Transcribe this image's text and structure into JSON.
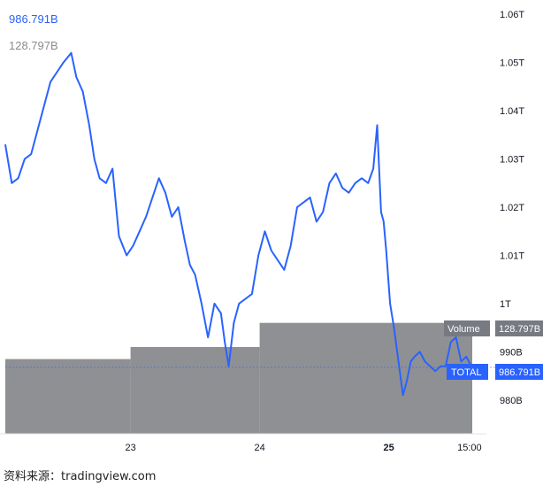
{
  "header": {
    "total_value": "986.791B",
    "volume_value": "128.797B"
  },
  "source_text": "资料来源：tradingview.com",
  "badges": {
    "volume_label": "Volume",
    "volume_value": "128.797B",
    "total_label": "TOTAL",
    "total_value": "986.791B"
  },
  "colors": {
    "line": "#2962ff",
    "volume": "#8f9093",
    "badge_total": "#2962ff",
    "badge_volume": "#777a80"
  },
  "chart_data": {
    "type": "line",
    "title": "",
    "xlabel": "",
    "ylabel": "",
    "x_ticks": [
      {
        "label": "23",
        "x": 23.0,
        "bold": false
      },
      {
        "label": "24",
        "x": 24.0,
        "bold": false
      },
      {
        "label": "25",
        "x": 25.0,
        "bold": true
      },
      {
        "label": "15:00",
        "x": 25.625,
        "bold": false
      }
    ],
    "y_ticks": [
      {
        "label": "1.06T",
        "value": 1060
      },
      {
        "label": "1.05T",
        "value": 1050
      },
      {
        "label": "1.04T",
        "value": 1040
      },
      {
        "label": "1.03T",
        "value": 1030
      },
      {
        "label": "1.02T",
        "value": 1020
      },
      {
        "label": "1.01T",
        "value": 1010
      },
      {
        "label": "1T",
        "value": 1000
      },
      {
        "label": "990B",
        "value": 990
      },
      {
        "label": "980B",
        "value": 980
      }
    ],
    "xlim": [
      22.03,
      25.66
    ],
    "ylim": [
      973.0,
      1061.5
    ],
    "series": [
      {
        "values_unit": "B",
        "x": [
          22.03,
          22.08,
          22.13,
          22.18,
          22.23,
          22.28,
          22.33,
          22.38,
          22.43,
          22.48,
          22.51,
          22.54,
          22.58,
          22.63,
          22.68,
          22.72,
          22.76,
          22.81,
          22.86,
          22.91,
          22.97,
          23.02,
          23.07,
          23.12,
          23.17,
          23.22,
          23.27,
          23.32,
          23.37,
          23.42,
          23.46,
          23.5,
          23.55,
          23.6,
          23.65,
          23.7,
          23.73,
          23.76,
          23.8,
          23.84,
          23.89,
          23.94,
          23.99,
          24.04,
          24.09,
          24.14,
          24.19,
          24.24,
          24.29,
          24.34,
          24.39,
          24.44,
          24.49,
          24.54,
          24.59,
          24.64,
          24.69,
          24.74,
          24.79,
          24.84,
          24.88,
          24.91,
          24.94,
          24.96,
          24.98,
          25.01,
          25.04,
          25.08,
          25.11,
          25.14,
          25.17,
          25.2,
          25.24,
          25.28,
          25.32,
          25.36,
          25.4,
          25.44,
          25.48,
          25.52,
          25.56,
          25.6,
          25.64
        ],
        "y": [
          1033,
          1025,
          1026,
          1030,
          1031,
          1036,
          1041,
          1046,
          1048,
          1050,
          1051,
          1052,
          1047,
          1044,
          1037,
          1030,
          1026,
          1025,
          1028,
          1014,
          1010,
          1012,
          1015,
          1018,
          1022,
          1026,
          1023,
          1018,
          1020,
          1013,
          1008,
          1006,
          1000,
          993,
          1000,
          998,
          992,
          987,
          996,
          1000,
          1001,
          1002,
          1010,
          1015,
          1011,
          1009,
          1007,
          1012,
          1020,
          1021,
          1022,
          1017,
          1019,
          1025,
          1027,
          1024,
          1023,
          1025,
          1026,
          1025,
          1028,
          1037,
          1019,
          1017,
          1011,
          1000,
          995,
          987,
          981,
          984,
          988,
          989,
          990,
          988,
          987,
          986,
          987,
          987,
          992,
          993,
          988,
          989,
          987
        ]
      },
      {
        "name": "Volume",
        "type": "step",
        "x_start": [
          22.03,
          23.0,
          24.0
        ],
        "x_end": [
          23.0,
          24.0,
          25.66
        ],
        "values_b": [
          988.5,
          991.0,
          996.0
        ]
      }
    ],
    "last_value_line_b": 986.791,
    "grid": false,
    "legend": "top-left"
  }
}
